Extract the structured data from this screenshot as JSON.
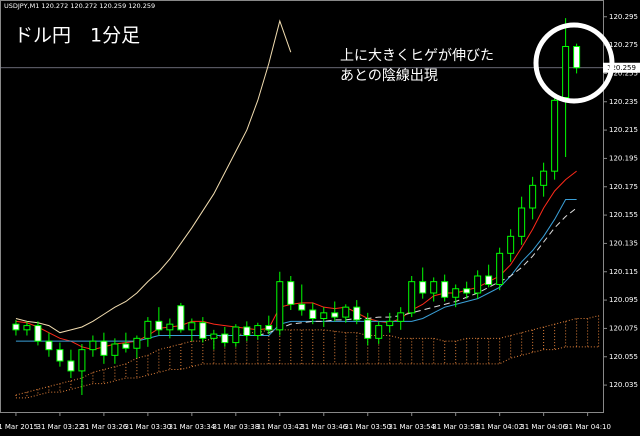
{
  "chart_data": {
    "type": "candlestick",
    "header": "USDJPY,M1  120.272 120.272 120.259 120.259",
    "title": "ドル円　1分足",
    "annotation": [
      "上に大きくヒゲが伸びた",
      "あとの陰線出現"
    ],
    "current_price": 120.259,
    "bull_color": "#000000",
    "bear_color": "#ffffff",
    "candle_outline": "#00ff00",
    "ylim": [
      120.016,
      120.304
    ],
    "yticks": [
      120.035,
      120.055,
      120.075,
      120.095,
      120.115,
      120.135,
      120.155,
      120.175,
      120.195,
      120.215,
      120.235,
      120.255,
      120.275,
      120.295
    ],
    "xlim": [
      -1.45,
      53.4
    ],
    "xticks": [
      {
        "value": 0,
        "label": "31 Mar 2015"
      },
      {
        "value": 4,
        "label": "31 Mar 03:22"
      },
      {
        "value": 8,
        "label": "31 Mar 03:26"
      },
      {
        "value": 12,
        "label": "31 Mar 03:30"
      },
      {
        "value": 16,
        "label": "31 Mar 03:34"
      },
      {
        "value": 20,
        "label": "31 Mar 03:38"
      },
      {
        "value": 24,
        "label": "31 Mar 03:42"
      },
      {
        "value": 28,
        "label": "31 Mar 03:46"
      },
      {
        "value": 32,
        "label": "31 Mar 03:50"
      },
      {
        "value": 36,
        "label": "31 Mar 03:54"
      },
      {
        "value": 40,
        "label": "31 Mar 03:58"
      },
      {
        "value": 44,
        "label": "31 Mar 04:02"
      },
      {
        "value": 48,
        "label": "31 Mar 04:06"
      },
      {
        "value": 52,
        "label": "31 Mar 04:10"
      }
    ],
    "ohlc": [
      [
        120.078,
        120.081,
        120.07,
        120.074
      ],
      [
        120.074,
        120.08,
        120.07,
        120.077
      ],
      [
        120.077,
        120.08,
        120.063,
        120.066
      ],
      [
        120.066,
        120.072,
        120.055,
        120.06
      ],
      [
        120.06,
        120.065,
        120.048,
        120.052
      ],
      [
        120.052,
        120.06,
        120.04,
        120.045
      ],
      [
        120.045,
        120.064,
        120.028,
        120.06
      ],
      [
        120.06,
        120.07,
        120.055,
        120.066
      ],
      [
        120.066,
        120.072,
        120.05,
        120.056
      ],
      [
        120.056,
        120.068,
        120.05,
        120.064
      ],
      [
        120.064,
        120.072,
        120.058,
        120.061
      ],
      [
        120.061,
        120.07,
        120.054,
        120.068
      ],
      [
        120.068,
        120.083,
        120.062,
        120.08
      ],
      [
        120.08,
        120.09,
        120.07,
        120.074
      ],
      [
        120.074,
        120.082,
        120.068,
        120.078
      ],
      [
        120.091,
        120.093,
        120.072,
        120.074
      ],
      [
        120.074,
        120.082,
        120.066,
        120.079
      ],
      [
        120.079,
        120.083,
        120.065,
        120.068
      ],
      [
        120.068,
        120.074,
        120.06,
        120.071
      ],
      [
        120.071,
        120.076,
        120.062,
        120.065
      ],
      [
        120.065,
        120.078,
        120.062,
        120.076
      ],
      [
        120.076,
        120.08,
        120.066,
        120.07
      ],
      [
        120.07,
        120.079,
        120.067,
        120.077
      ],
      [
        120.077,
        120.084,
        120.071,
        120.074
      ],
      [
        120.074,
        120.115,
        120.07,
        120.108
      ],
      [
        120.108,
        120.112,
        120.088,
        120.092
      ],
      [
        120.092,
        120.106,
        120.084,
        120.088
      ],
      [
        120.088,
        120.093,
        120.078,
        120.082
      ],
      [
        120.082,
        120.09,
        120.076,
        120.086
      ],
      [
        120.086,
        120.094,
        120.08,
        120.083
      ],
      [
        120.083,
        120.092,
        120.079,
        120.09
      ],
      [
        120.09,
        120.095,
        120.078,
        120.081
      ],
      [
        120.081,
        120.086,
        120.063,
        120.068
      ],
      [
        120.068,
        120.08,
        120.064,
        120.077
      ],
      [
        120.077,
        120.086,
        120.072,
        120.08
      ],
      [
        120.08,
        120.09,
        120.074,
        120.086
      ],
      [
        120.086,
        120.112,
        120.083,
        120.108
      ],
      [
        120.108,
        120.118,
        120.096,
        120.1
      ],
      [
        120.1,
        120.111,
        120.094,
        120.108
      ],
      [
        120.108,
        120.113,
        120.094,
        120.097
      ],
      [
        120.097,
        120.106,
        120.09,
        120.103
      ],
      [
        120.103,
        120.108,
        120.096,
        120.1
      ],
      [
        120.1,
        120.116,
        120.096,
        120.112
      ],
      [
        120.112,
        120.12,
        120.104,
        120.106
      ],
      [
        120.106,
        120.132,
        120.102,
        120.128
      ],
      [
        120.128,
        120.145,
        120.122,
        120.14
      ],
      [
        120.14,
        120.168,
        120.134,
        120.16
      ],
      [
        120.16,
        120.182,
        120.152,
        120.176
      ],
      [
        120.176,
        120.192,
        120.168,
        120.186
      ],
      [
        120.186,
        120.24,
        120.18,
        120.236
      ],
      [
        120.238,
        120.294,
        120.196,
        120.274
      ],
      [
        120.274,
        120.276,
        120.255,
        120.259
      ]
    ],
    "lines": [
      {
        "color": "#ff2a1a",
        "dash": false,
        "values": [
          120.08,
          120.079,
          120.076,
          120.072,
          120.068,
          120.066,
          120.062,
          120.06,
          120.062,
          120.064,
          120.065,
          120.066,
          120.07,
          120.075,
          120.076,
          120.077,
          120.08,
          120.08,
          120.078,
          120.077,
          120.076,
          120.075,
          120.074,
          120.075,
          120.09,
          120.092,
          120.093,
          120.093,
          120.09,
          120.089,
          120.09,
          120.086,
          120.082,
          120.08,
          120.079,
          120.082,
          120.088,
          120.092,
          120.098,
          120.1,
          120.1,
          120.102,
          120.104,
          120.108,
          120.112,
          120.12,
          120.132,
          120.145,
          120.16,
          120.172,
          120.18,
          120.186
        ]
      },
      {
        "color": "#3aa0d8",
        "dash": false,
        "values": [
          120.066,
          120.066,
          120.066,
          120.066,
          120.066,
          120.066,
          120.066,
          120.066,
          120.066,
          120.066,
          120.066,
          120.066,
          120.068,
          120.07,
          120.07,
          120.07,
          120.07,
          120.07,
          120.07,
          120.07,
          120.07,
          120.07,
          120.07,
          120.07,
          120.078,
          120.08,
          120.08,
          120.08,
          120.08,
          120.08,
          120.08,
          120.08,
          120.08,
          120.08,
          120.08,
          120.08,
          120.08,
          120.082,
          120.086,
          120.09,
          120.092,
          120.094,
          120.096,
          120.1,
          120.104,
          120.112,
          120.122,
          120.13,
          120.14,
          120.152,
          120.166,
          120.166
        ]
      },
      {
        "color": "#dddddd",
        "dash": true,
        "values": [
          null,
          null,
          null,
          null,
          null,
          null,
          null,
          null,
          null,
          null,
          null,
          null,
          null,
          null,
          null,
          null,
          null,
          null,
          null,
          null,
          null,
          null,
          120.07,
          120.072,
          120.075,
          120.078,
          120.079,
          120.08,
          120.08,
          120.081,
          120.081,
          120.082,
          120.082,
          120.083,
          120.083,
          120.084,
          120.086,
          120.088,
          120.09,
          120.092,
          120.094,
          120.097,
          120.1,
          120.104,
          120.108,
          120.112,
          120.118,
          120.126,
          120.136,
          120.146,
          120.154,
          120.16
        ]
      },
      {
        "color": "#f2ddb0",
        "dash": false,
        "values": [
          120.082,
          120.08,
          120.079,
          120.077,
          120.072,
          120.074,
          120.076,
          120.08,
          120.085,
          120.09,
          120.094,
          120.1,
          120.108,
          120.115,
          120.124,
          120.135,
          120.146,
          120.158,
          120.17,
          120.185,
          120.2,
          120.215,
          120.236,
          120.262,
          120.292,
          120.27,
          null,
          null,
          null,
          null,
          null,
          null,
          null,
          null,
          null,
          null,
          null,
          null,
          null,
          null,
          null,
          null,
          null,
          null,
          null,
          null,
          null,
          null,
          null,
          null,
          null,
          null
        ]
      }
    ],
    "cloud": {
      "color": "#e0803a",
      "upper": [
        120.028,
        120.03,
        120.032,
        120.034,
        120.036,
        120.038,
        120.04,
        120.044,
        120.046,
        120.048,
        120.05,
        120.054,
        120.056,
        120.06,
        120.062,
        120.064,
        120.066,
        120.066,
        120.068,
        120.07,
        120.07,
        120.072,
        120.072,
        120.074,
        120.074,
        120.074,
        120.074,
        120.074,
        120.074,
        120.073,
        120.072,
        120.072,
        120.07,
        120.07,
        120.07,
        120.068,
        120.068,
        120.068,
        120.068,
        120.066,
        120.066,
        120.068,
        120.068,
        120.068,
        120.068,
        120.07,
        120.072,
        120.074,
        120.076,
        120.078,
        120.08,
        120.082,
        120.082,
        120.084
      ],
      "lower": [
        120.026,
        120.026,
        120.028,
        120.03,
        120.03,
        120.032,
        120.034,
        120.036,
        120.036,
        120.038,
        120.04,
        120.04,
        120.042,
        120.044,
        120.046,
        120.046,
        120.048,
        120.05,
        120.05,
        120.05,
        120.05,
        120.05,
        120.05,
        120.05,
        120.05,
        120.05,
        120.05,
        120.05,
        120.05,
        120.05,
        120.05,
        120.05,
        120.05,
        120.05,
        120.05,
        120.05,
        120.05,
        120.05,
        120.05,
        120.05,
        120.05,
        120.05,
        120.05,
        120.05,
        120.05,
        120.054,
        120.056,
        120.058,
        120.06,
        120.06,
        120.062,
        120.062,
        120.062,
        120.062
      ]
    }
  }
}
